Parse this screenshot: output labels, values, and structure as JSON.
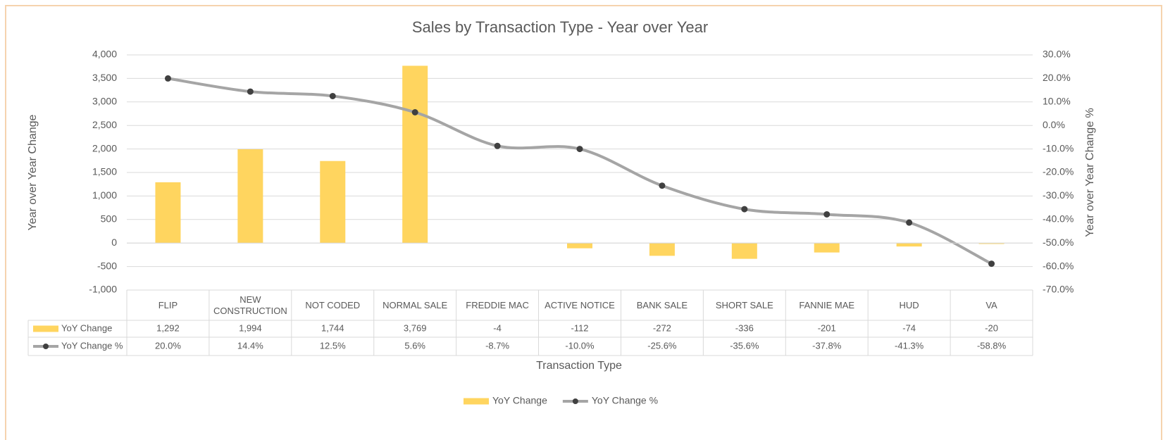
{
  "chart_data": {
    "type": "bar",
    "title": "Sales by Transaction Type - Year over Year",
    "x_label": "Transaction Type",
    "y_label": "Year over Year Change",
    "y2_label": "Year over Year Change %",
    "categories": [
      "FLIP",
      "NEW CONSTRUCTION",
      "NOT CODED",
      "NORMAL SALE",
      "FREDDIE MAC",
      "ACTIVE NOTICE",
      "BANK SALE",
      "SHORT SALE",
      "FANNIE MAE",
      "HUD",
      "VA"
    ],
    "series": [
      {
        "name": "YoY Change",
        "type": "bar",
        "color": "#ffd55f",
        "values": [
          1292,
          1994,
          1744,
          3769,
          -4,
          -112,
          -272,
          -336,
          -201,
          -74,
          -20
        ],
        "value_labels": [
          "1,292",
          "1,994",
          "1,744",
          "3,769",
          "-4",
          "-112",
          "-272",
          "-336",
          "-201",
          "-74",
          "-20"
        ]
      },
      {
        "name": "YoY Change %",
        "type": "line",
        "axis": "y2",
        "color": "#a5a5a5",
        "marker_color": "#404040",
        "values": [
          20.0,
          14.4,
          12.5,
          5.6,
          -8.7,
          -10.0,
          -25.6,
          -35.6,
          -37.8,
          -41.3,
          -58.8
        ],
        "value_labels": [
          "20.0%",
          "14.4%",
          "12.5%",
          "5.6%",
          "-8.7%",
          "-10.0%",
          "-25.6%",
          "-35.6%",
          "-37.8%",
          "-41.3%",
          "-58.8%"
        ]
      }
    ],
    "ylim": [
      -1000,
      4000
    ],
    "yticks": [
      {
        "value": -1000,
        "label": "-1,000"
      },
      -500,
      0,
      500,
      {
        "value": 1000,
        "label": "1,000"
      },
      {
        "value": 1500,
        "label": "1,500"
      },
      {
        "value": 2000,
        "label": "2,000"
      },
      {
        "value": 2500,
        "label": "2,500"
      },
      {
        "value": 3000,
        "label": "3,000"
      },
      {
        "value": 3500,
        "label": "3,500"
      },
      {
        "value": 4000,
        "label": "4,000"
      }
    ],
    "y2lim": [
      -70,
      30
    ],
    "y2ticks": [
      {
        "value": -70,
        "label": "-70.0%"
      },
      {
        "value": -60,
        "label": "-60.0%"
      },
      {
        "value": -50,
        "label": "-50.0%"
      },
      {
        "value": -40,
        "label": "-40.0%"
      },
      {
        "value": -30,
        "label": "-30.0%"
      },
      {
        "value": -20,
        "label": "-20.0%"
      },
      {
        "value": -10,
        "label": "-10.0%"
      },
      {
        "value": 0,
        "label": "0.0%"
      },
      {
        "value": 10,
        "label": "10.0%"
      },
      {
        "value": 20,
        "label": "20.0%"
      },
      {
        "value": 30,
        "label": "30.0%"
      }
    ],
    "grid": true,
    "smooth": true,
    "legend": "bottom"
  }
}
